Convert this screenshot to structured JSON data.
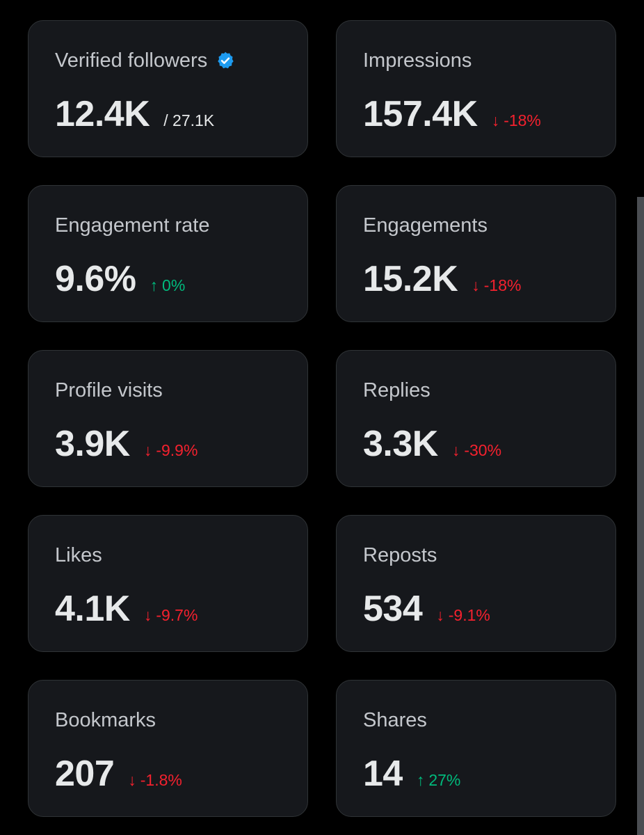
{
  "colors": {
    "background": "#000000",
    "card": "#16181c",
    "border": "#2f3336",
    "up": "#00ba7c",
    "down": "#f4212e",
    "verified": "#1d9bf0"
  },
  "cards": [
    {
      "label": "Verified followers",
      "value": "12.4K",
      "sub": "/ 27.1K",
      "icon": "verified-badge-icon"
    },
    {
      "label": "Impressions",
      "value": "157.4K",
      "change": "-18%",
      "direction": "down"
    },
    {
      "label": "Engagement rate",
      "value": "9.6%",
      "change": "0%",
      "direction": "up"
    },
    {
      "label": "Engagements",
      "value": "15.2K",
      "change": "-18%",
      "direction": "down"
    },
    {
      "label": "Profile visits",
      "value": "3.9K",
      "change": "-9.9%",
      "direction": "down"
    },
    {
      "label": "Replies",
      "value": "3.3K",
      "change": "-30%",
      "direction": "down"
    },
    {
      "label": "Likes",
      "value": "4.1K",
      "change": "-9.7%",
      "direction": "down"
    },
    {
      "label": "Reposts",
      "value": "534",
      "change": "-9.1%",
      "direction": "down"
    },
    {
      "label": "Bookmarks",
      "value": "207",
      "change": "-1.8%",
      "direction": "down"
    },
    {
      "label": "Shares",
      "value": "14",
      "change": "27%",
      "direction": "up"
    }
  ],
  "arrows": {
    "up": "↑",
    "down": "↓"
  }
}
